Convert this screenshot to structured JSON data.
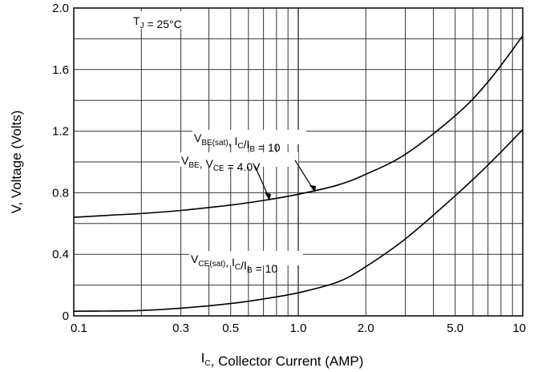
{
  "chart_data": {
    "type": "line",
    "xscale": "log",
    "xlim": [
      0.1,
      10
    ],
    "ylim": [
      0,
      2.0
    ],
    "grid": true,
    "xticks": [
      {
        "value": 0.1,
        "label": "0.1"
      },
      {
        "value": 0.3,
        "label": "0.3"
      },
      {
        "value": 0.5,
        "label": "0.5"
      },
      {
        "value": 1.0,
        "label": "1.0"
      },
      {
        "value": 2.0,
        "label": "2.0"
      },
      {
        "value": 5.0,
        "label": "5.0"
      },
      {
        "value": 10,
        "label": "10"
      }
    ],
    "yticks": [
      {
        "value": 0,
        "label": "0"
      },
      {
        "value": 0.4,
        "label": "0.4"
      },
      {
        "value": 0.8,
        "label": "0.8"
      },
      {
        "value": 1.2,
        "label": "1.2"
      },
      {
        "value": 1.6,
        "label": "1.6"
      },
      {
        "value": 2.0,
        "label": "2.0"
      }
    ],
    "xlabel": {
      "main": "I",
      "sub": "C",
      "rest": ", Collector Current (AMP)"
    },
    "ylabel": "V, Voltage (Volts)",
    "condition": {
      "main": "T",
      "sub": "J",
      "rest": " = 25°C"
    },
    "series": [
      {
        "name": "V_BE(sat), I_C/I_B = 10",
        "x": [
          0.1,
          0.15,
          0.2,
          0.3,
          0.5,
          0.7,
          1.0,
          1.5,
          2.0,
          3.0,
          5.0,
          7.0,
          10
        ],
        "y": [
          0.64,
          0.655,
          0.665,
          0.685,
          0.72,
          0.75,
          0.79,
          0.85,
          0.92,
          1.05,
          1.3,
          1.52,
          1.82
        ]
      },
      {
        "name": "V_CE(sat), I_C/I_B = 10",
        "x": [
          0.1,
          0.15,
          0.2,
          0.3,
          0.5,
          0.7,
          1.0,
          1.5,
          2.0,
          3.0,
          5.0,
          7.0,
          10
        ],
        "y": [
          0.03,
          0.032,
          0.035,
          0.05,
          0.08,
          0.11,
          0.15,
          0.22,
          0.32,
          0.5,
          0.78,
          0.98,
          1.21
        ]
      }
    ],
    "annotations": [
      {
        "id": "vbe_sat",
        "parts": [
          {
            "t": "V"
          },
          {
            "t": "BE(sat)",
            "sub": true
          },
          {
            "t": ", I"
          },
          {
            "t": "C",
            "sub": true
          },
          {
            "t": "/I"
          },
          {
            "t": "B",
            "sub": true
          },
          {
            "t": " = 10"
          }
        ]
      },
      {
        "id": "vbe_vce",
        "parts": [
          {
            "t": "V"
          },
          {
            "t": "BE",
            "sub": true
          },
          {
            "t": ", V"
          },
          {
            "t": "CE",
            "sub": true
          },
          {
            "t": " = 4.0V"
          }
        ]
      },
      {
        "id": "vce_sat",
        "parts": [
          {
            "t": "V"
          },
          {
            "t": "CE(sat)",
            "sub": true
          },
          {
            "t": ", I"
          },
          {
            "t": "C",
            "sub": true
          },
          {
            "t": "/I"
          },
          {
            "t": "B",
            "sub": true
          },
          {
            "t": " = 10"
          }
        ]
      }
    ]
  }
}
